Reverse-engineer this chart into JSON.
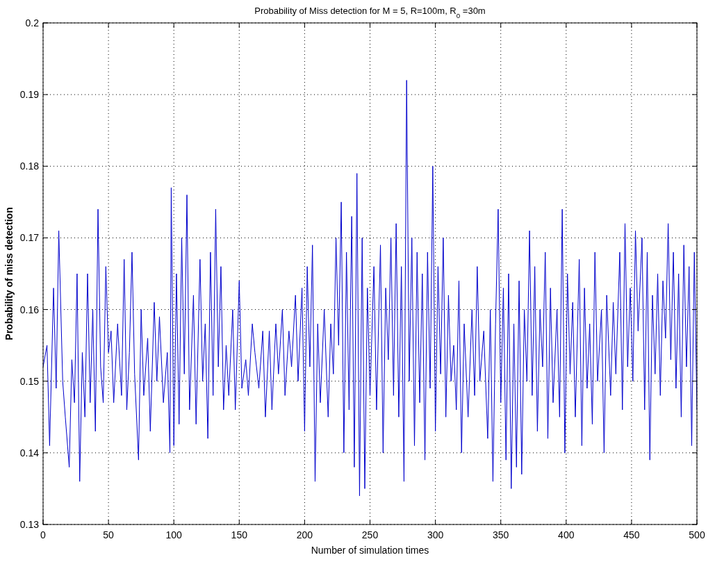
{
  "chart_data": {
    "type": "line",
    "title": "Probability of Miss detection for M = 5, R=100m, R$_{0}$ =30m",
    "xlabel": "Number of simulation times",
    "ylabel": "Probability of miss detection",
    "xlim": [
      0,
      500
    ],
    "xticks": [
      0,
      50,
      100,
      150,
      200,
      250,
      300,
      350,
      400,
      450,
      500
    ],
    "ylim": [
      0.13,
      0.2
    ],
    "yticks": [
      0.13,
      0.14,
      0.15,
      0.16,
      0.17,
      0.18,
      0.19,
      0.2
    ],
    "grid": true,
    "marker": "none",
    "line_style": "solid",
    "series": [
      {
        "color": "#0000cc",
        "x": [
          0,
          3,
          5,
          8,
          10,
          12,
          15,
          17,
          20,
          22,
          24,
          26,
          28,
          30,
          32,
          34,
          36,
          38,
          40,
          42,
          44,
          46,
          48,
          50,
          52,
          54,
          57,
          60,
          62,
          64,
          66,
          68,
          70,
          73,
          75,
          77,
          80,
          82,
          85,
          87,
          89,
          92,
          95,
          97,
          98,
          100,
          102,
          104,
          106,
          108,
          110,
          112,
          115,
          117,
          120,
          122,
          124,
          126,
          128,
          130,
          132,
          134,
          136,
          138,
          140,
          142,
          145,
          147,
          150,
          152,
          155,
          157,
          160,
          162,
          165,
          168,
          170,
          173,
          175,
          178,
          180,
          183,
          185,
          188,
          190,
          193,
          195,
          198,
          200,
          202,
          204,
          206,
          208,
          210,
          212,
          215,
          218,
          220,
          222,
          224,
          226,
          228,
          230,
          232,
          234,
          236,
          238,
          240,
          242,
          244,
          246,
          248,
          250,
          253,
          255,
          258,
          260,
          262,
          264,
          266,
          268,
          270,
          272,
          274,
          276,
          278,
          280,
          282,
          284,
          286,
          288,
          290,
          292,
          294,
          296,
          298,
          300,
          302,
          304,
          306,
          308,
          310,
          312,
          314,
          316,
          318,
          320,
          322,
          325,
          328,
          330,
          332,
          334,
          337,
          340,
          342,
          344,
          346,
          348,
          350,
          352,
          354,
          356,
          358,
          360,
          362,
          364,
          366,
          368,
          370,
          372,
          374,
          376,
          378,
          380,
          382,
          384,
          386,
          388,
          390,
          393,
          395,
          397,
          399,
          401,
          403,
          405,
          407,
          410,
          412,
          414,
          416,
          418,
          420,
          422,
          424,
          427,
          429,
          431,
          434,
          436,
          438,
          441,
          443,
          445,
          447,
          449,
          451,
          453,
          455,
          458,
          460,
          462,
          464,
          466,
          468,
          470,
          472,
          474,
          476,
          478,
          480,
          482,
          484,
          486,
          488,
          490,
          492,
          494,
          496,
          498,
          500
        ],
        "values": [
          0.152,
          0.155,
          0.141,
          0.163,
          0.149,
          0.171,
          0.15,
          0.145,
          0.138,
          0.153,
          0.147,
          0.165,
          0.136,
          0.154,
          0.145,
          0.165,
          0.147,
          0.16,
          0.143,
          0.174,
          0.152,
          0.147,
          0.166,
          0.154,
          0.157,
          0.147,
          0.158,
          0.148,
          0.167,
          0.146,
          0.154,
          0.168,
          0.151,
          0.139,
          0.16,
          0.148,
          0.156,
          0.143,
          0.161,
          0.15,
          0.159,
          0.147,
          0.154,
          0.14,
          0.177,
          0.141,
          0.165,
          0.144,
          0.17,
          0.151,
          0.176,
          0.146,
          0.162,
          0.144,
          0.167,
          0.15,
          0.158,
          0.142,
          0.168,
          0.148,
          0.174,
          0.152,
          0.166,
          0.146,
          0.155,
          0.148,
          0.16,
          0.146,
          0.164,
          0.149,
          0.153,
          0.148,
          0.158,
          0.154,
          0.149,
          0.157,
          0.145,
          0.157,
          0.146,
          0.158,
          0.151,
          0.16,
          0.148,
          0.157,
          0.152,
          0.162,
          0.15,
          0.163,
          0.143,
          0.166,
          0.152,
          0.169,
          0.136,
          0.158,
          0.147,
          0.16,
          0.145,
          0.158,
          0.151,
          0.17,
          0.155,
          0.175,
          0.14,
          0.168,
          0.146,
          0.173,
          0.138,
          0.179,
          0.134,
          0.17,
          0.135,
          0.163,
          0.148,
          0.166,
          0.146,
          0.169,
          0.14,
          0.163,
          0.153,
          0.17,
          0.148,
          0.172,
          0.145,
          0.166,
          0.136,
          0.192,
          0.15,
          0.17,
          0.141,
          0.168,
          0.147,
          0.165,
          0.139,
          0.168,
          0.149,
          0.18,
          0.143,
          0.166,
          0.151,
          0.17,
          0.145,
          0.162,
          0.15,
          0.155,
          0.146,
          0.164,
          0.14,
          0.158,
          0.145,
          0.16,
          0.148,
          0.166,
          0.15,
          0.157,
          0.142,
          0.16,
          0.136,
          0.158,
          0.174,
          0.147,
          0.163,
          0.139,
          0.165,
          0.135,
          0.158,
          0.138,
          0.164,
          0.137,
          0.16,
          0.15,
          0.171,
          0.148,
          0.166,
          0.143,
          0.16,
          0.152,
          0.168,
          0.142,
          0.163,
          0.147,
          0.16,
          0.145,
          0.174,
          0.14,
          0.165,
          0.151,
          0.161,
          0.145,
          0.167,
          0.141,
          0.163,
          0.149,
          0.158,
          0.144,
          0.168,
          0.15,
          0.16,
          0.14,
          0.162,
          0.148,
          0.161,
          0.151,
          0.168,
          0.146,
          0.172,
          0.152,
          0.163,
          0.15,
          0.171,
          0.157,
          0.17,
          0.146,
          0.168,
          0.139,
          0.162,
          0.151,
          0.165,
          0.148,
          0.164,
          0.156,
          0.172,
          0.153,
          0.168,
          0.149,
          0.165,
          0.145,
          0.169,
          0.152,
          0.166,
          0.141,
          0.168,
          0.146
        ]
      }
    ]
  }
}
